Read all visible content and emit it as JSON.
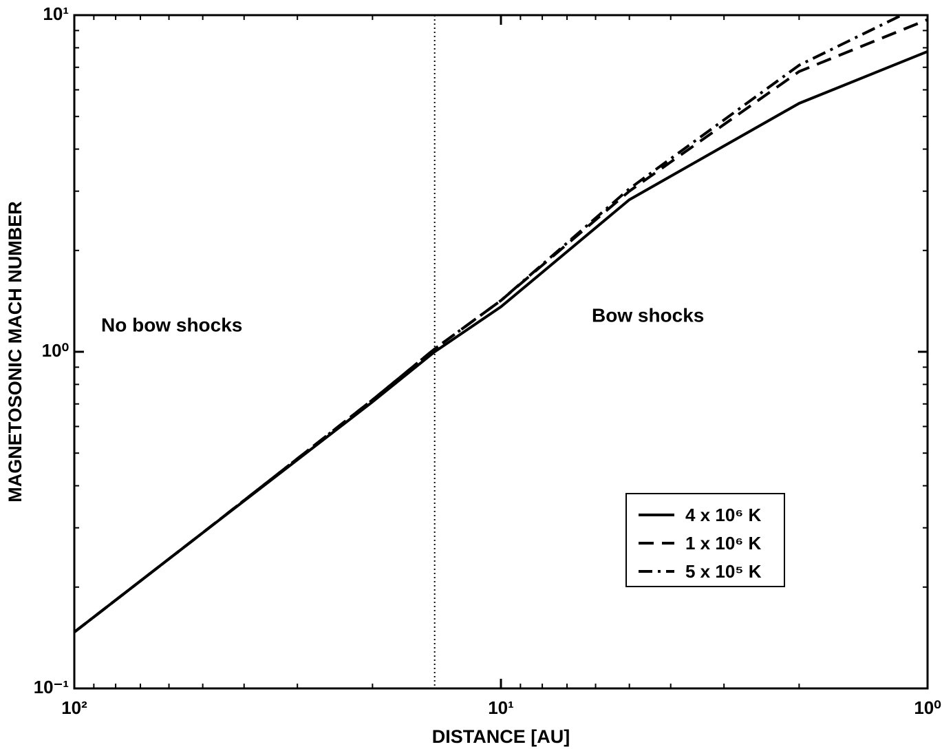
{
  "chart_data": {
    "type": "line",
    "x_label": "DISTANCE [AU]",
    "y_label": "MAGNETOSONIC MACH NUMBER",
    "xscale": "log",
    "yscale": "log",
    "x_reversed": true,
    "xlim": [
      100,
      1
    ],
    "ylim": [
      0.1,
      10
    ],
    "xticks": [
      {
        "value": 100,
        "label": "10²"
      },
      {
        "value": 10,
        "label": "10¹"
      },
      {
        "value": 1,
        "label": "10⁰"
      }
    ],
    "yticks": [
      {
        "value": 0.1,
        "label": "10⁻¹"
      },
      {
        "value": 1,
        "label": "10⁰"
      },
      {
        "value": 10,
        "label": "10¹"
      }
    ],
    "xminorticks": [
      90,
      80,
      70,
      60,
      50,
      40,
      30,
      20,
      9,
      8,
      7,
      6,
      5,
      4,
      3,
      2
    ],
    "yminorticks": [
      0.2,
      0.3,
      0.4,
      0.5,
      0.6,
      0.7,
      0.8,
      0.9,
      2,
      3,
      4,
      5,
      6,
      7,
      8,
      9
    ],
    "vline": 14.3,
    "annotations": [
      "No bow shocks",
      "Bow shocks"
    ],
    "series": [
      {
        "name": "4 x 10⁶ K",
        "color": "#000000",
        "dash": "solid",
        "x": [
          100,
          50,
          20,
          14.3,
          10,
          5,
          2,
          1
        ],
        "values": [
          0.147,
          0.29,
          0.71,
          1.0,
          1.36,
          2.83,
          5.47,
          7.8
        ]
      },
      {
        "name": "1 x 10⁶ K",
        "color": "#000000",
        "dash": "dashed",
        "x": [
          100,
          50,
          20,
          14.3,
          10,
          5,
          2,
          1
        ],
        "values": [
          0.147,
          0.29,
          0.72,
          1.02,
          1.42,
          3.0,
          6.8,
          9.7
        ]
      },
      {
        "name": "5 x 10⁵ K",
        "color": "#000000",
        "dash": "dashdot",
        "x": [
          100,
          50,
          20,
          14.3,
          10,
          5,
          2,
          1.15
        ],
        "values": [
          0.147,
          0.29,
          0.72,
          1.02,
          1.42,
          3.05,
          7.1,
          10
        ]
      }
    ]
  }
}
